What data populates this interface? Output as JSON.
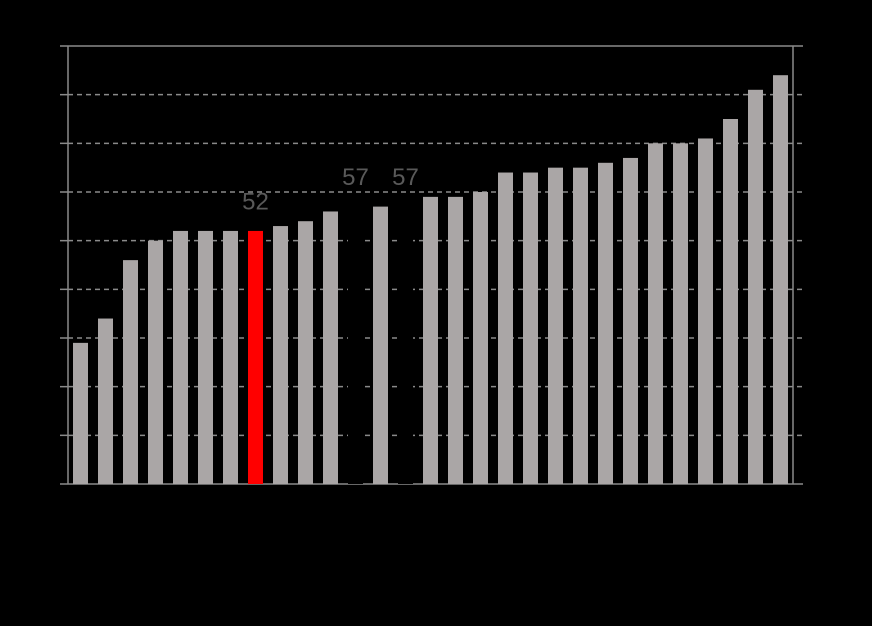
{
  "chart_data": {
    "type": "bar",
    "categories": [
      null,
      null,
      null,
      null,
      null,
      null,
      null,
      null,
      null,
      null,
      null,
      null,
      null,
      null,
      null,
      null,
      null,
      null,
      null,
      null,
      null,
      null,
      null,
      null,
      null,
      null,
      null,
      null,
      null
    ],
    "values": [
      29,
      34,
      46,
      50,
      52,
      52,
      52,
      52,
      53,
      54,
      56,
      57,
      57,
      57,
      59,
      59,
      60,
      64,
      64,
      65,
      65,
      66,
      67,
      70,
      70,
      71,
      75,
      81,
      84
    ],
    "value_labels": [
      null,
      null,
      null,
      null,
      null,
      null,
      null,
      "52",
      null,
      null,
      null,
      "57",
      null,
      "57",
      null,
      null,
      null,
      null,
      null,
      null,
      null,
      null,
      null,
      null,
      null,
      null,
      null,
      null,
      null
    ],
    "colors": [
      "#aaa6a6",
      "#aaa6a6",
      "#aaa6a6",
      "#aaa6a6",
      "#aaa6a6",
      "#aaa6a6",
      "#aaa6a6",
      "#ff0000",
      "#aaa6a6",
      "#aaa6a6",
      "#aaa6a6",
      "#000000",
      "#aaa6a6",
      "#000000",
      "#aaa6a6",
      "#aaa6a6",
      "#aaa6a6",
      "#aaa6a6",
      "#aaa6a6",
      "#aaa6a6",
      "#aaa6a6",
      "#aaa6a6",
      "#aaa6a6",
      "#aaa6a6",
      "#aaa6a6",
      "#aaa6a6",
      "#aaa6a6",
      "#aaa6a6",
      "#aaa6a6"
    ],
    "ylim": [
      0,
      90
    ],
    "yticks": [
      0,
      10,
      20,
      30,
      40,
      50,
      60,
      70,
      80,
      90
    ],
    "grid": true
  }
}
